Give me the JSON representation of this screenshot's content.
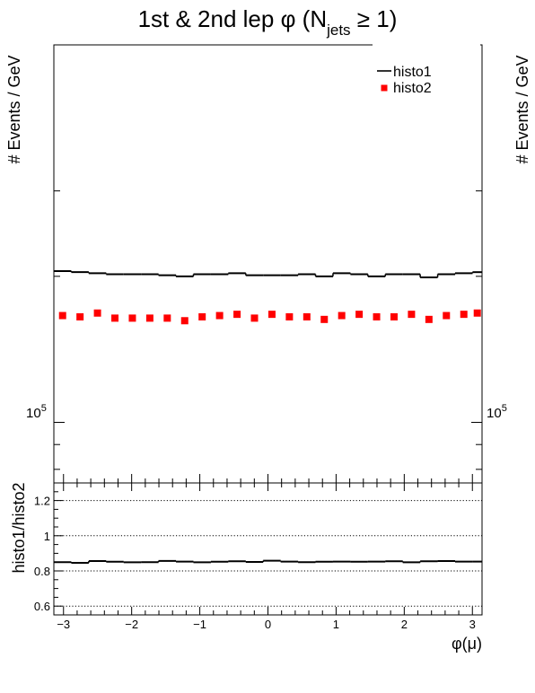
{
  "chart_data": [
    {
      "type": "line",
      "title": {
        "prefix": "1st & 2nd lep φ (N",
        "subscript": "jets",
        "suffix": " ≥ 1)"
      },
      "ylabel": "# Events / GeV",
      "yscale": "log",
      "ylim": [
        75000,
        600000
      ],
      "y_tick_labels": [
        {
          "base": "10",
          "exp": "5"
        }
      ],
      "xlim": [
        -3.1416,
        3.1416
      ],
      "x_bin_edges": [
        -3.1416,
        -2.8856,
        -2.6296,
        -2.3736,
        -2.1176,
        -1.8616,
        -1.6056,
        -1.3496,
        -1.0936,
        -0.8376,
        -0.5816,
        -0.3256,
        -0.0696,
        0.1864,
        0.4424,
        0.6984,
        0.9544,
        1.2104,
        1.4664,
        1.7224,
        1.9784,
        2.2344,
        2.4904,
        2.7464,
        3.0024,
        3.1416
      ],
      "series": [
        {
          "name": "histo1",
          "style": "histogram",
          "color": "#000000",
          "values": [
            205000,
            204000,
            203000,
            202000,
            202000,
            202000,
            201000,
            200000,
            202000,
            202000,
            203000,
            201000,
            201000,
            201000,
            202000,
            200000,
            203000,
            202000,
            200000,
            202000,
            202000,
            199000,
            202000,
            203000,
            204000
          ]
        },
        {
          "name": "histo2",
          "style": "markers",
          "marker": "square",
          "color": "#ff0000",
          "values": [
            166000,
            165000,
            168000,
            164000,
            164000,
            164000,
            164000,
            162000,
            165000,
            166000,
            167000,
            164000,
            167000,
            165000,
            165000,
            163000,
            166000,
            167000,
            165000,
            165000,
            167000,
            163000,
            166000,
            167000,
            168000
          ]
        }
      ],
      "legend": {
        "placement": "top-right",
        "entries": [
          "histo1",
          "histo2"
        ]
      }
    },
    {
      "type": "line",
      "xlabel": "φ(μ)",
      "ylabel": "histo1/histo2",
      "xlim": [
        -3.1416,
        3.1416
      ],
      "ylim": [
        0.55,
        1.3
      ],
      "x_ticks": [
        -3,
        -2,
        -1,
        0,
        1,
        2,
        3
      ],
      "x_tick_labels": [
        "−3",
        "−2",
        "−1",
        "0",
        "1",
        "2",
        "3"
      ],
      "y_ticks": [
        0.6,
        0.8,
        1,
        1.2
      ],
      "y_tick_labels": [
        "0.6",
        "0.8",
        "1",
        "1.2"
      ],
      "reference_lines": [
        0.6,
        0.8,
        1.0,
        1.2
      ],
      "series": [
        {
          "name": "histo1/histo2",
          "style": "histogram",
          "color": "#000000",
          "values": [
            0.85,
            0.846,
            0.856,
            0.852,
            0.849,
            0.85,
            0.857,
            0.853,
            0.849,
            0.852,
            0.855,
            0.851,
            0.858,
            0.853,
            0.85,
            0.852,
            0.853,
            0.852,
            0.853,
            0.855,
            0.849,
            0.855,
            0.856,
            0.853,
            0.853
          ]
        }
      ]
    }
  ]
}
